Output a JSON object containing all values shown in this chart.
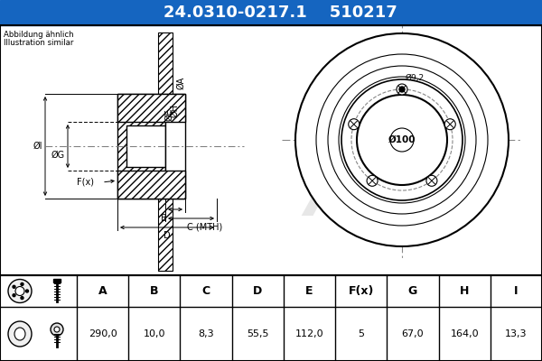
{
  "title_part_number": "24.0310-0217.1",
  "title_code": "510217",
  "header_bg": "#1565c0",
  "header_text_color": "#ffffff",
  "body_bg": "#ffffff",
  "table_headers": [
    "A",
    "B",
    "C",
    "D",
    "E",
    "F(x)",
    "G",
    "H",
    "I"
  ],
  "table_values": [
    "290,0",
    "10,0",
    "8,3",
    "55,5",
    "112,0",
    "5",
    "67,0",
    "164,0",
    "13,3"
  ],
  "note_line1": "Abbildung ähnlich",
  "note_line2": "Illustration similar",
  "center_label": "Ø100",
  "bolt_hole_label": "Ø9,2"
}
